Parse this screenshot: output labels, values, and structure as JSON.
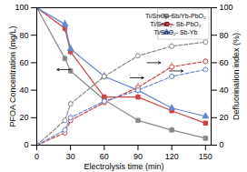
{
  "chart_data": {
    "type": "line",
    "x": [
      0,
      25,
      30,
      60,
      90,
      120,
      150
    ],
    "xlabel": "Electrolysis time (min)",
    "ylabel": "PFOA Concentration (mg/L)",
    "y2label": "Defluorination index (%)",
    "xlim": [
      0,
      155
    ],
    "xticks": [
      0,
      30,
      60,
      90,
      120,
      150
    ],
    "ylim": [
      0,
      100
    ],
    "yticks": [
      0,
      20,
      40,
      60,
      80,
      100
    ],
    "y2lim": [
      0,
      100
    ],
    "y2ticks": [
      0,
      20,
      40,
      60,
      80,
      100
    ],
    "legend": "upper right",
    "series": [
      {
        "name": "Ti/SnO₂- Sb/Yb-PbO₂",
        "color": "#888888",
        "values": [
          100,
          63,
          54,
          33,
          18,
          11,
          5
        ],
        "errors": [
          0,
          2,
          2,
          2,
          2,
          2,
          1
        ],
        "marker": "square",
        "line_style": "solid"
      },
      {
        "name": "Ti/SnO₂- Sb-PbO₂",
        "color": "#cc4444",
        "values": [
          100,
          85,
          68,
          35,
          35,
          25,
          16
        ],
        "errors": [
          0,
          3,
          3,
          2,
          2,
          2,
          1
        ],
        "marker": "square",
        "line_style": "solid"
      },
      {
        "name": "Ti/SnO₂- Sb-Yb",
        "color": "#6688cc",
        "values": [
          100,
          88,
          70,
          50,
          40,
          27,
          21
        ],
        "errors": [
          0,
          3,
          3,
          3,
          3,
          2,
          2
        ],
        "marker": "triangle",
        "line_style": "solid"
      },
      {
        "color": "#888888",
        "values": [
          0,
          18,
          30,
          50,
          65,
          72,
          75
        ],
        "errors": [
          0,
          1,
          2,
          2,
          2,
          2,
          1
        ],
        "marker": "open_circle",
        "line_style": "dashed",
        "axis": "y2"
      },
      {
        "color": "#cc4444",
        "values": [
          0,
          9,
          18,
          31,
          42,
          57,
          61
        ],
        "errors": [
          0,
          1,
          1,
          2,
          3,
          3,
          2
        ],
        "marker": "open_circle",
        "line_style": "dashed",
        "axis": "y2"
      },
      {
        "color": "#6688cc",
        "values": [
          0,
          11,
          20,
          32,
          40,
          50,
          55
        ],
        "errors": [
          0,
          1,
          2,
          2,
          2,
          2,
          2
        ],
        "marker": "open_circle",
        "line_style": "dashed",
        "axis": "y2"
      }
    ],
    "annotations": [
      {
        "x1": 30,
        "y1": 55,
        "x2": 18,
        "y2": 55
      },
      {
        "x1": 83,
        "y1": 49,
        "x2": 95,
        "y2": 49
      },
      {
        "x1": 98,
        "y1": 60,
        "x2": 110,
        "y2": 60
      },
      {
        "x1": 118,
        "y1": 54,
        "x2": 130,
        "y2": 54
      }
    ]
  }
}
